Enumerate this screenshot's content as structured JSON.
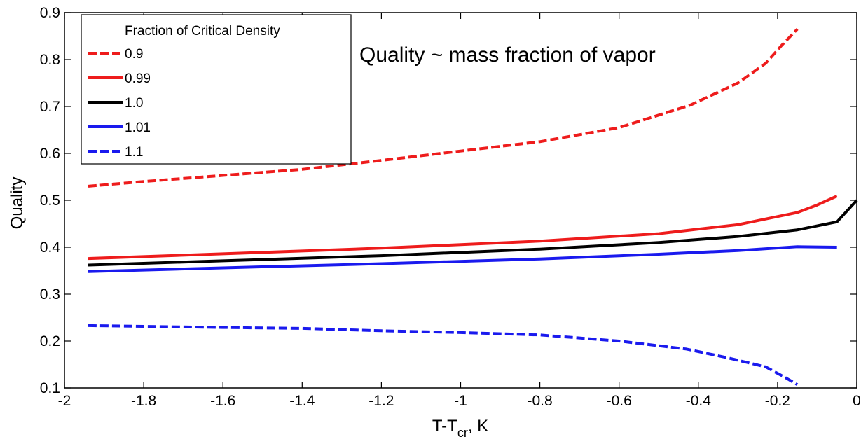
{
  "chart_data": {
    "type": "line",
    "xlabel": "T-T",
    "xlabel_sub": "cr",
    "xlabel_after": ", K",
    "ylabel": "Quality",
    "xlim": [
      -2,
      0
    ],
    "ylim": [
      0.1,
      0.9
    ],
    "x_ticks": [
      -2,
      -1.8,
      -1.6,
      -1.4,
      -1.2,
      -1,
      -0.8,
      -0.6,
      -0.4,
      -0.2,
      0
    ],
    "x_tick_labels": [
      "-2",
      "-1.8",
      "-1.6",
      "-1.4",
      "-1.2",
      "-1",
      "-0.8",
      "-0.6",
      "-0.4",
      "-0.2",
      "0"
    ],
    "y_ticks": [
      0.1,
      0.2,
      0.3,
      0.4,
      0.5,
      0.6,
      0.7,
      0.8,
      0.9
    ],
    "y_tick_labels": [
      "0.1",
      "0.2",
      "0.3",
      "0.4",
      "0.5",
      "0.6",
      "0.7",
      "0.8",
      "0.9"
    ],
    "grid": false,
    "legend": {
      "title": "Fraction of Critical Density",
      "position": "top-left"
    },
    "annotation": "Quality ~  mass fraction of vapor",
    "series": [
      {
        "name": "0.9",
        "color": "#ee1c1c",
        "dash": true,
        "points": [
          [
            -1.94,
            0.53
          ],
          [
            -1.8,
            0.54
          ],
          [
            -1.6,
            0.553
          ],
          [
            -1.4,
            0.566
          ],
          [
            -1.2,
            0.585
          ],
          [
            -1.0,
            0.605
          ],
          [
            -0.8,
            0.625
          ],
          [
            -0.6,
            0.655
          ],
          [
            -0.42,
            0.703
          ],
          [
            -0.3,
            0.75
          ],
          [
            -0.23,
            0.792
          ],
          [
            -0.19,
            0.83
          ],
          [
            -0.15,
            0.865
          ]
        ]
      },
      {
        "name": "0.99",
        "color": "#ee1c1c",
        "dash": false,
        "points": [
          [
            -1.94,
            0.376
          ],
          [
            -1.6,
            0.386
          ],
          [
            -1.2,
            0.398
          ],
          [
            -0.8,
            0.413
          ],
          [
            -0.5,
            0.429
          ],
          [
            -0.3,
            0.448
          ],
          [
            -0.15,
            0.474
          ],
          [
            -0.1,
            0.49
          ],
          [
            -0.05,
            0.509
          ]
        ]
      },
      {
        "name": "1.0",
        "color": "#000000",
        "dash": false,
        "points": [
          [
            -1.94,
            0.362
          ],
          [
            -1.6,
            0.371
          ],
          [
            -1.2,
            0.382
          ],
          [
            -0.8,
            0.396
          ],
          [
            -0.5,
            0.41
          ],
          [
            -0.3,
            0.423
          ],
          [
            -0.15,
            0.437
          ],
          [
            -0.05,
            0.454
          ],
          [
            0.0,
            0.5
          ]
        ]
      },
      {
        "name": "1.01",
        "color": "#1a1aee",
        "dash": false,
        "points": [
          [
            -1.94,
            0.348
          ],
          [
            -1.6,
            0.356
          ],
          [
            -1.2,
            0.365
          ],
          [
            -0.8,
            0.375
          ],
          [
            -0.5,
            0.385
          ],
          [
            -0.3,
            0.393
          ],
          [
            -0.15,
            0.401
          ],
          [
            -0.05,
            0.4
          ]
        ]
      },
      {
        "name": "1.1",
        "color": "#1a1aee",
        "dash": true,
        "points": [
          [
            -1.94,
            0.233
          ],
          [
            -1.6,
            0.229
          ],
          [
            -1.4,
            0.227
          ],
          [
            -1.2,
            0.222
          ],
          [
            -1.0,
            0.218
          ],
          [
            -0.8,
            0.213
          ],
          [
            -0.6,
            0.2
          ],
          [
            -0.43,
            0.183
          ],
          [
            -0.33,
            0.165
          ],
          [
            -0.23,
            0.145
          ],
          [
            -0.18,
            0.122
          ],
          [
            -0.15,
            0.107
          ]
        ]
      }
    ]
  }
}
